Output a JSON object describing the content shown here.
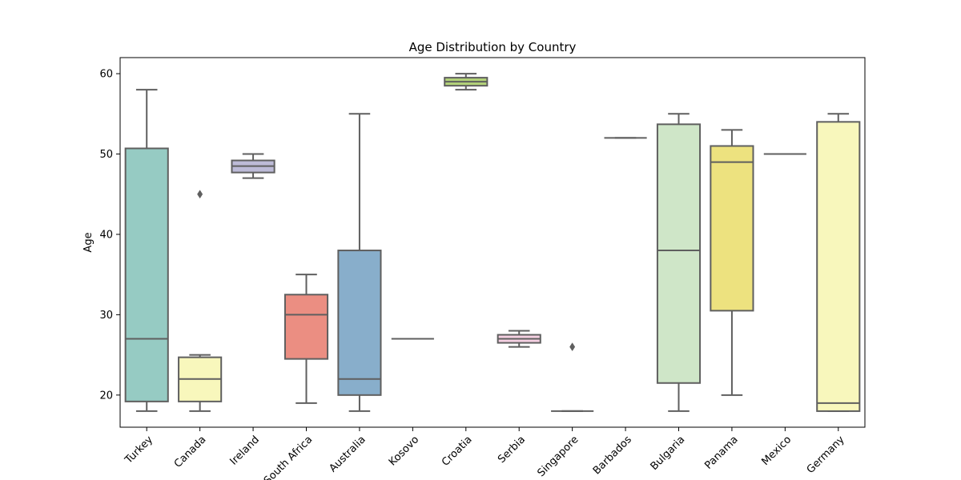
{
  "chart_data": {
    "type": "boxplot",
    "title": "Age Distribution by Country",
    "xlabel": "",
    "ylabel": "Age",
    "ylim": [
      16,
      62
    ],
    "yticks": [
      20,
      30,
      40,
      50,
      60
    ],
    "grid": false,
    "legend": "none",
    "categories": [
      "Turkey",
      "Canada",
      "Ireland",
      "South Africa",
      "Australia",
      "Kosovo",
      "Croatia",
      "Serbia",
      "Singapore",
      "Barbados",
      "Bulgaria",
      "Panama",
      "Mexico",
      "Germany"
    ],
    "boxes": [
      {
        "category": "Turkey",
        "min": 18,
        "q1": 19.2,
        "median": 27,
        "q3": 50.7,
        "max": 58,
        "outliers": [],
        "color": "#96cbc3"
      },
      {
        "category": "Canada",
        "min": 18,
        "q1": 19.2,
        "median": 22,
        "q3": 24.7,
        "max": 25,
        "outliers": [
          45
        ],
        "color": "#f8f7bc"
      },
      {
        "category": "Ireland",
        "min": 47,
        "q1": 47.7,
        "median": 48.5,
        "q3": 49.2,
        "max": 50,
        "outliers": [],
        "color": "#bdbbd7"
      },
      {
        "category": "South Africa",
        "min": 19,
        "q1": 24.5,
        "median": 30,
        "q3": 32.5,
        "max": 35,
        "outliers": [],
        "color": "#eb8e82"
      },
      {
        "category": "Australia",
        "min": 18,
        "q1": 20,
        "median": 22,
        "q3": 38,
        "max": 55,
        "outliers": [],
        "color": "#88aecb"
      },
      {
        "category": "Kosovo",
        "min": 27,
        "q1": 27,
        "median": 27,
        "q3": 27,
        "max": 27,
        "outliers": [],
        "color": "#f1b26f"
      },
      {
        "category": "Croatia",
        "min": 58,
        "q1": 58.5,
        "median": 59,
        "q3": 59.5,
        "max": 60,
        "outliers": [],
        "color": "#b4d47a"
      },
      {
        "category": "Serbia",
        "min": 26,
        "q1": 26.5,
        "median": 27,
        "q3": 27.5,
        "max": 28,
        "outliers": [],
        "color": "#f5d0e2"
      },
      {
        "category": "Singapore",
        "min": 18,
        "q1": 18,
        "median": 18,
        "q3": 18,
        "max": 18,
        "outliers": [
          26
        ],
        "color": "#d9d9d9"
      },
      {
        "category": "Barbados",
        "min": 52,
        "q1": 52,
        "median": 52,
        "q3": 52,
        "max": 52,
        "outliers": [],
        "color": "#bf90c0"
      },
      {
        "category": "Bulgaria",
        "min": 18,
        "q1": 21.5,
        "median": 38,
        "q3": 53.7,
        "max": 55,
        "outliers": [],
        "color": "#cfe6c8"
      },
      {
        "category": "Panama",
        "min": 20,
        "q1": 30.5,
        "median": 49,
        "q3": 51,
        "max": 53,
        "outliers": [],
        "color": "#ede27f"
      },
      {
        "category": "Mexico",
        "min": 50,
        "q1": 50,
        "median": 50,
        "q3": 50,
        "max": 50,
        "outliers": [],
        "color": "#96cbc3"
      },
      {
        "category": "Germany",
        "min": 18,
        "q1": 18,
        "median": 19,
        "q3": 54,
        "max": 55,
        "outliers": [],
        "color": "#f8f7bc"
      }
    ]
  }
}
